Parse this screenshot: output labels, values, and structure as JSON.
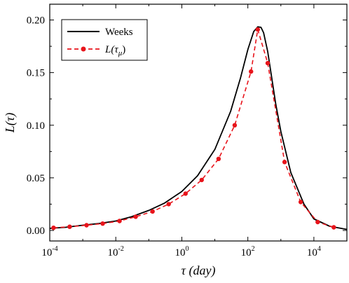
{
  "chart_data": {
    "type": "line",
    "xlabel": "τ (day)",
    "ylabel": "L(τ)",
    "xscale": "log",
    "xlim": [
      0.0001,
      100000
    ],
    "ylim": [
      -0.01,
      0.215
    ],
    "x_ticks": [
      {
        "value": 0.0001,
        "base": "10",
        "exp": "-4"
      },
      {
        "value": 0.01,
        "base": "10",
        "exp": "-2"
      },
      {
        "value": 1,
        "base": "10",
        "exp": "0"
      },
      {
        "value": 100,
        "base": "10",
        "exp": "2"
      },
      {
        "value": 10000,
        "base": "10",
        "exp": "4"
      }
    ],
    "y_ticks": [
      "0.00",
      "0.05",
      "0.10",
      "0.15",
      "0.20"
    ],
    "grid": false,
    "legend_position": "top-left",
    "series": [
      {
        "name": "Weeks",
        "style": "solid",
        "color": "#000000",
        "x": [
          0.0001,
          0.0003,
          0.001,
          0.003,
          0.01,
          0.03,
          0.1,
          0.3,
          1,
          3,
          10,
          30,
          60,
          100,
          150,
          200,
          250,
          300,
          400,
          500,
          700,
          1000,
          2000,
          5000,
          10000,
          30000,
          100000
        ],
        "y": [
          0.002,
          0.003,
          0.005,
          0.0065,
          0.009,
          0.013,
          0.019,
          0.026,
          0.037,
          0.052,
          0.077,
          0.113,
          0.145,
          0.172,
          0.189,
          0.1935,
          0.193,
          0.188,
          0.17,
          0.15,
          0.12,
          0.094,
          0.055,
          0.025,
          0.011,
          0.004,
          0.001
        ]
      },
      {
        "name": "L(τμ)",
        "legend_main": "L(τ",
        "legend_sub": "μ",
        "legend_close": ")",
        "style": "dashed",
        "marker": "circle",
        "color": "#e8141b",
        "x": [
          0.00013,
          0.0004,
          0.0013,
          0.004,
          0.013,
          0.04,
          0.13,
          0.4,
          1.3,
          4,
          13,
          40,
          125,
          200,
          400,
          1300,
          4000,
          13000,
          40000
        ],
        "y": [
          0.0025,
          0.0035,
          0.005,
          0.0065,
          0.009,
          0.013,
          0.018,
          0.025,
          0.035,
          0.048,
          0.068,
          0.1,
          0.151,
          0.191,
          0.159,
          0.065,
          0.027,
          0.008,
          0.003
        ]
      }
    ]
  }
}
